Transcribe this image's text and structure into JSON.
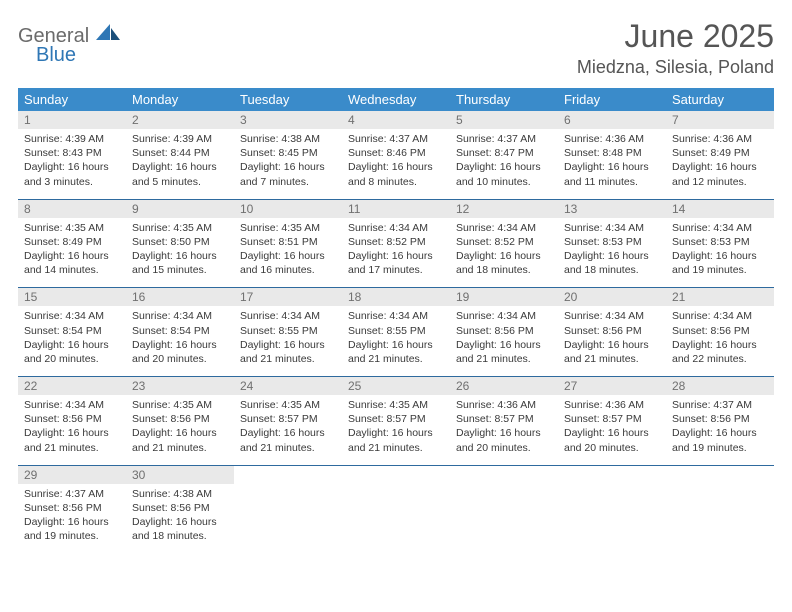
{
  "brand": {
    "word1": "General",
    "word2": "Blue"
  },
  "title": "June 2025",
  "location": "Miedzna, Silesia, Poland",
  "colors": {
    "header_bg": "#3a8bca",
    "header_text": "#ffffff",
    "daynum_bg": "#e9e9e9",
    "daynum_text": "#707070",
    "rule": "#2e6a9e",
    "body_text": "#3a3a3a",
    "title_text": "#555555",
    "logo_gray": "#6b6b6b",
    "logo_blue": "#2f77b5"
  },
  "typography": {
    "title_fontsize": 32,
    "location_fontsize": 18,
    "dow_fontsize": 13,
    "daynum_fontsize": 12,
    "detail_fontsize": 10.5
  },
  "dow": [
    "Sunday",
    "Monday",
    "Tuesday",
    "Wednesday",
    "Thursday",
    "Friday",
    "Saturday"
  ],
  "weeks": [
    [
      {
        "n": "1",
        "sr": "Sunrise: 4:39 AM",
        "ss": "Sunset: 8:43 PM",
        "dl": "Daylight: 16 hours and 3 minutes."
      },
      {
        "n": "2",
        "sr": "Sunrise: 4:39 AM",
        "ss": "Sunset: 8:44 PM",
        "dl": "Daylight: 16 hours and 5 minutes."
      },
      {
        "n": "3",
        "sr": "Sunrise: 4:38 AM",
        "ss": "Sunset: 8:45 PM",
        "dl": "Daylight: 16 hours and 7 minutes."
      },
      {
        "n": "4",
        "sr": "Sunrise: 4:37 AM",
        "ss": "Sunset: 8:46 PM",
        "dl": "Daylight: 16 hours and 8 minutes."
      },
      {
        "n": "5",
        "sr": "Sunrise: 4:37 AM",
        "ss": "Sunset: 8:47 PM",
        "dl": "Daylight: 16 hours and 10 minutes."
      },
      {
        "n": "6",
        "sr": "Sunrise: 4:36 AM",
        "ss": "Sunset: 8:48 PM",
        "dl": "Daylight: 16 hours and 11 minutes."
      },
      {
        "n": "7",
        "sr": "Sunrise: 4:36 AM",
        "ss": "Sunset: 8:49 PM",
        "dl": "Daylight: 16 hours and 12 minutes."
      }
    ],
    [
      {
        "n": "8",
        "sr": "Sunrise: 4:35 AM",
        "ss": "Sunset: 8:49 PM",
        "dl": "Daylight: 16 hours and 14 minutes."
      },
      {
        "n": "9",
        "sr": "Sunrise: 4:35 AM",
        "ss": "Sunset: 8:50 PM",
        "dl": "Daylight: 16 hours and 15 minutes."
      },
      {
        "n": "10",
        "sr": "Sunrise: 4:35 AM",
        "ss": "Sunset: 8:51 PM",
        "dl": "Daylight: 16 hours and 16 minutes."
      },
      {
        "n": "11",
        "sr": "Sunrise: 4:34 AM",
        "ss": "Sunset: 8:52 PM",
        "dl": "Daylight: 16 hours and 17 minutes."
      },
      {
        "n": "12",
        "sr": "Sunrise: 4:34 AM",
        "ss": "Sunset: 8:52 PM",
        "dl": "Daylight: 16 hours and 18 minutes."
      },
      {
        "n": "13",
        "sr": "Sunrise: 4:34 AM",
        "ss": "Sunset: 8:53 PM",
        "dl": "Daylight: 16 hours and 18 minutes."
      },
      {
        "n": "14",
        "sr": "Sunrise: 4:34 AM",
        "ss": "Sunset: 8:53 PM",
        "dl": "Daylight: 16 hours and 19 minutes."
      }
    ],
    [
      {
        "n": "15",
        "sr": "Sunrise: 4:34 AM",
        "ss": "Sunset: 8:54 PM",
        "dl": "Daylight: 16 hours and 20 minutes."
      },
      {
        "n": "16",
        "sr": "Sunrise: 4:34 AM",
        "ss": "Sunset: 8:54 PM",
        "dl": "Daylight: 16 hours and 20 minutes."
      },
      {
        "n": "17",
        "sr": "Sunrise: 4:34 AM",
        "ss": "Sunset: 8:55 PM",
        "dl": "Daylight: 16 hours and 21 minutes."
      },
      {
        "n": "18",
        "sr": "Sunrise: 4:34 AM",
        "ss": "Sunset: 8:55 PM",
        "dl": "Daylight: 16 hours and 21 minutes."
      },
      {
        "n": "19",
        "sr": "Sunrise: 4:34 AM",
        "ss": "Sunset: 8:56 PM",
        "dl": "Daylight: 16 hours and 21 minutes."
      },
      {
        "n": "20",
        "sr": "Sunrise: 4:34 AM",
        "ss": "Sunset: 8:56 PM",
        "dl": "Daylight: 16 hours and 21 minutes."
      },
      {
        "n": "21",
        "sr": "Sunrise: 4:34 AM",
        "ss": "Sunset: 8:56 PM",
        "dl": "Daylight: 16 hours and 22 minutes."
      }
    ],
    [
      {
        "n": "22",
        "sr": "Sunrise: 4:34 AM",
        "ss": "Sunset: 8:56 PM",
        "dl": "Daylight: 16 hours and 21 minutes."
      },
      {
        "n": "23",
        "sr": "Sunrise: 4:35 AM",
        "ss": "Sunset: 8:56 PM",
        "dl": "Daylight: 16 hours and 21 minutes."
      },
      {
        "n": "24",
        "sr": "Sunrise: 4:35 AM",
        "ss": "Sunset: 8:57 PM",
        "dl": "Daylight: 16 hours and 21 minutes."
      },
      {
        "n": "25",
        "sr": "Sunrise: 4:35 AM",
        "ss": "Sunset: 8:57 PM",
        "dl": "Daylight: 16 hours and 21 minutes."
      },
      {
        "n": "26",
        "sr": "Sunrise: 4:36 AM",
        "ss": "Sunset: 8:57 PM",
        "dl": "Daylight: 16 hours and 20 minutes."
      },
      {
        "n": "27",
        "sr": "Sunrise: 4:36 AM",
        "ss": "Sunset: 8:57 PM",
        "dl": "Daylight: 16 hours and 20 minutes."
      },
      {
        "n": "28",
        "sr": "Sunrise: 4:37 AM",
        "ss": "Sunset: 8:56 PM",
        "dl": "Daylight: 16 hours and 19 minutes."
      }
    ],
    [
      {
        "n": "29",
        "sr": "Sunrise: 4:37 AM",
        "ss": "Sunset: 8:56 PM",
        "dl": "Daylight: 16 hours and 19 minutes."
      },
      {
        "n": "30",
        "sr": "Sunrise: 4:38 AM",
        "ss": "Sunset: 8:56 PM",
        "dl": "Daylight: 16 hours and 18 minutes."
      },
      null,
      null,
      null,
      null,
      null
    ]
  ]
}
